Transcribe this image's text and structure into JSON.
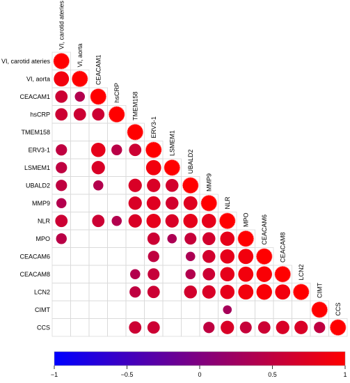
{
  "chart_data": {
    "type": "heatmap",
    "subtype": "correlation-lower-triangle",
    "title": "",
    "variables": [
      "VI, carotid ateries",
      "VI, aorta",
      "CEACAM1",
      "hsCRP",
      "TMEM158",
      "ERV3-1",
      "LSMEM1",
      "UBALD2",
      "MMP9",
      "NLR",
      "MPO",
      "CEACAM6",
      "CEACAM8",
      "LCN2",
      "CIMT",
      "CCS"
    ],
    "matrix": [
      [
        1.0,
        null,
        null,
        null,
        null,
        null,
        null,
        null,
        null,
        null,
        null,
        null,
        null,
        null,
        null,
        null
      ],
      [
        0.9,
        1.0,
        null,
        null,
        null,
        null,
        null,
        null,
        null,
        null,
        null,
        null,
        null,
        null,
        null,
        null
      ],
      [
        0.6,
        0.4,
        1.0,
        null,
        null,
        null,
        null,
        null,
        null,
        null,
        null,
        null,
        null,
        null,
        null,
        null
      ],
      [
        0.6,
        0.6,
        0.6,
        1.0,
        null,
        null,
        null,
        null,
        null,
        null,
        null,
        null,
        null,
        null,
        null,
        null
      ],
      [
        null,
        null,
        null,
        null,
        1.0,
        null,
        null,
        null,
        null,
        null,
        null,
        null,
        null,
        null,
        null,
        null
      ],
      [
        0.5,
        null,
        0.8,
        0.45,
        0.6,
        1.0,
        null,
        null,
        null,
        null,
        null,
        null,
        null,
        null,
        null,
        null
      ],
      [
        0.5,
        null,
        0.7,
        null,
        null,
        0.9,
        1.0,
        null,
        null,
        null,
        null,
        null,
        null,
        null,
        null,
        null
      ],
      [
        0.5,
        null,
        0.4,
        null,
        0.7,
        0.7,
        0.65,
        1.0,
        null,
        null,
        null,
        null,
        null,
        null,
        null,
        null
      ],
      [
        0.4,
        null,
        null,
        null,
        0.7,
        0.75,
        0.65,
        0.75,
        1.0,
        null,
        null,
        null,
        null,
        null,
        null,
        null
      ],
      [
        0.6,
        null,
        0.6,
        0.4,
        0.7,
        0.8,
        0.7,
        0.8,
        0.8,
        1.0,
        null,
        null,
        null,
        null,
        null,
        null
      ],
      [
        0.45,
        null,
        null,
        null,
        null,
        0.6,
        0.35,
        0.55,
        0.65,
        0.8,
        1.0,
        null,
        null,
        null,
        null,
        null
      ],
      [
        null,
        null,
        null,
        null,
        null,
        0.5,
        null,
        0.35,
        0.65,
        0.8,
        0.9,
        1.0,
        null,
        null,
        null,
        null
      ],
      [
        null,
        null,
        null,
        null,
        0.4,
        0.55,
        null,
        0.4,
        0.6,
        0.8,
        0.9,
        0.95,
        1.0,
        null,
        null,
        null
      ],
      [
        null,
        null,
        null,
        null,
        0.5,
        0.6,
        null,
        0.65,
        0.7,
        0.8,
        0.9,
        0.95,
        0.9,
        1.0,
        null,
        null
      ],
      [
        null,
        null,
        null,
        null,
        null,
        null,
        null,
        null,
        null,
        0.3,
        null,
        null,
        null,
        null,
        1.0,
        null
      ],
      [
        null,
        null,
        null,
        null,
        0.6,
        0.6,
        null,
        null,
        0.5,
        0.7,
        0.55,
        0.6,
        0.7,
        0.7,
        0.5,
        1.0
      ]
    ],
    "colorbar": {
      "range": [
        -1,
        1
      ],
      "ticks": [
        -1,
        -0.5,
        0,
        0.5,
        1
      ],
      "tick_labels": [
        "−1",
        "−0.5",
        "0",
        "0.5",
        "1"
      ],
      "colors": [
        "#0000ff",
        "#ff0000"
      ]
    },
    "grid": true,
    "marker": "circle (size and color proportional to correlation)"
  }
}
